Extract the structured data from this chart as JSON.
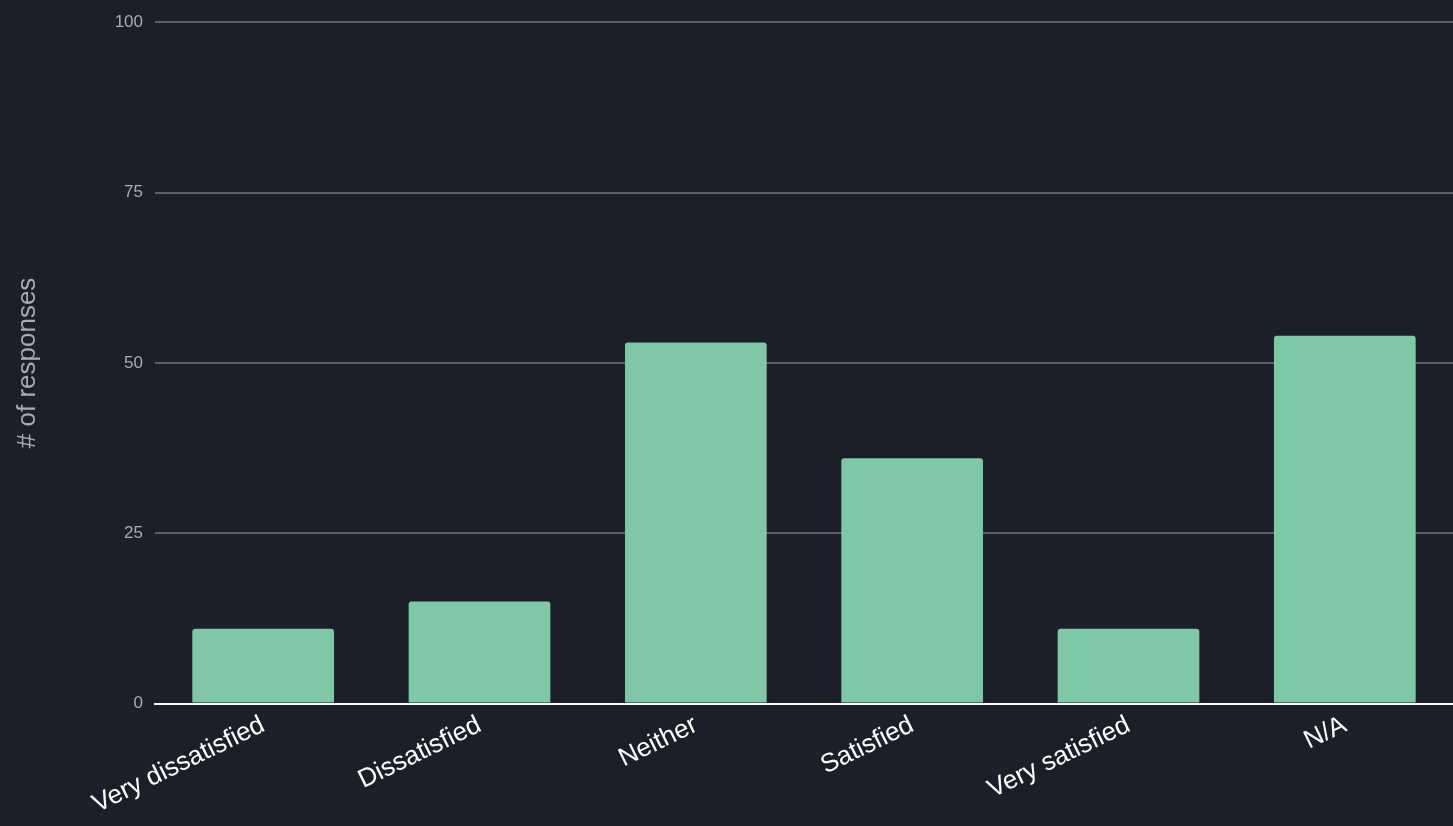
{
  "chart_data": {
    "type": "bar",
    "ylabel": "# of responses",
    "categories": [
      "Very dissatisfied",
      "Dissatisfied",
      "Neither",
      "Satisfied",
      "Very satisfied",
      "N/A"
    ],
    "values": [
      11,
      15,
      53,
      36,
      11,
      54
    ],
    "color": "#80c7a5",
    "ylim": [
      0,
      100
    ],
    "yticks": [
      0,
      25,
      50,
      75,
      100
    ],
    "grid": "y"
  }
}
